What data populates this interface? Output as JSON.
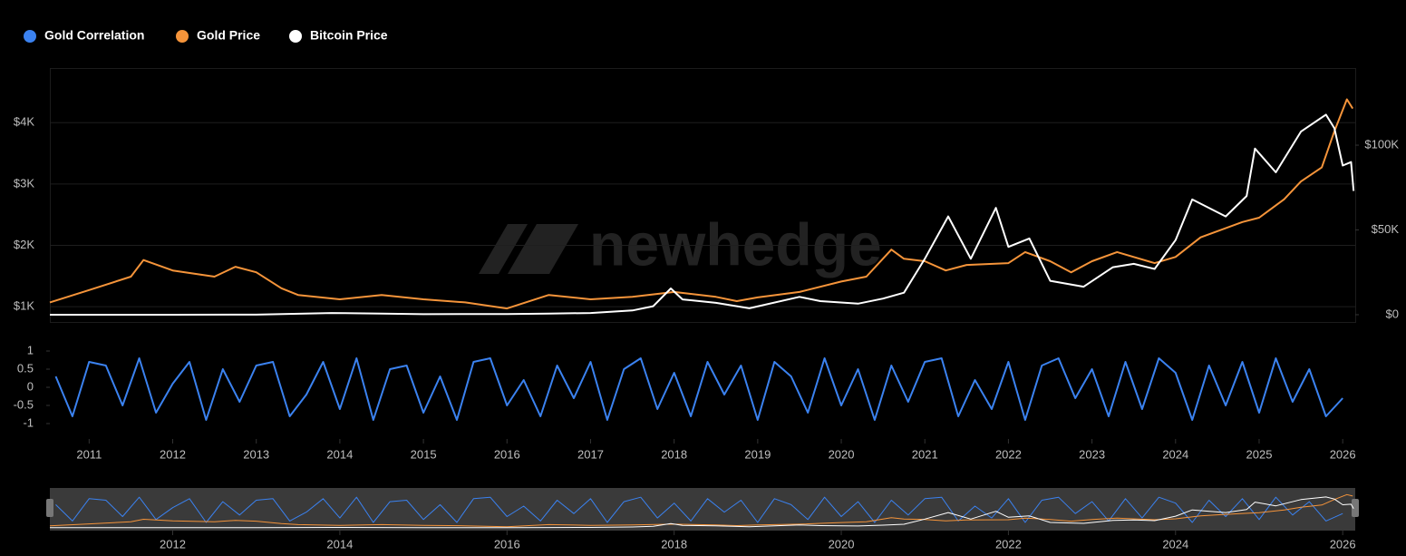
{
  "chart_data": {
    "type": "line",
    "watermark": "newhedge",
    "xlim": [
      2010.53,
      2026.15
    ],
    "xticks": [
      2011,
      2012,
      2013,
      2014,
      2015,
      2016,
      2017,
      2018,
      2019,
      2020,
      2021,
      2022,
      2023,
      2024,
      2025,
      2026
    ],
    "navigator_xticks": [
      2012,
      2014,
      2016,
      2018,
      2020,
      2022,
      2024,
      2026
    ],
    "ylim": [
      750,
      4890
    ],
    "yticks": [
      {
        "value": 1000,
        "label": "$1K"
      },
      {
        "value": 2000,
        "label": "$2K"
      },
      {
        "value": 3000,
        "label": "$3K"
      },
      {
        "value": 4000,
        "label": "$4K"
      }
    ],
    "y2lim": [
      -4300,
      145500
    ],
    "y2ticks": [
      {
        "value": 0,
        "label": "$0"
      },
      {
        "value": 50000,
        "label": "$50K"
      },
      {
        "value": 100000,
        "label": "$100K"
      }
    ],
    "y3lim": [
      -1.325,
      1.3
    ],
    "y3ticks": [
      1,
      0.5,
      0,
      -0.5,
      -1
    ],
    "grid": true,
    "legend": "top-left",
    "series": [
      {
        "name": "Gold Correlation",
        "color": "#3b82f0",
        "axis": "y3",
        "x": [
          2010.6,
          2010.8,
          2011,
          2011.2,
          2011.4,
          2011.6,
          2011.8,
          2012,
          2012.2,
          2012.4,
          2012.6,
          2012.8,
          2013,
          2013.2,
          2013.4,
          2013.6,
          2013.8,
          2014,
          2014.2,
          2014.4,
          2014.6,
          2014.8,
          2015,
          2015.2,
          2015.4,
          2015.6,
          2015.8,
          2016,
          2016.2,
          2016.4,
          2016.6,
          2016.8,
          2017,
          2017.2,
          2017.4,
          2017.6,
          2017.8,
          2018,
          2018.2,
          2018.4,
          2018.6,
          2018.8,
          2019,
          2019.2,
          2019.4,
          2019.6,
          2019.8,
          2020,
          2020.2,
          2020.4,
          2020.6,
          2020.8,
          2021,
          2021.2,
          2021.4,
          2021.6,
          2021.8,
          2022,
          2022.2,
          2022.4,
          2022.6,
          2022.8,
          2023,
          2023.2,
          2023.4,
          2023.6,
          2023.8,
          2024,
          2024.2,
          2024.4,
          2024.6,
          2024.8,
          2025,
          2025.2,
          2025.4,
          2025.6,
          2025.8,
          2026
        ],
        "values": [
          0.3,
          -0.8,
          0.7,
          0.6,
          -0.5,
          0.8,
          -0.7,
          0.1,
          0.7,
          -0.9,
          0.5,
          -0.4,
          0.6,
          0.7,
          -0.8,
          -0.2,
          0.7,
          -0.6,
          0.8,
          -0.9,
          0.5,
          0.6,
          -0.7,
          0.3,
          -0.9,
          0.7,
          0.8,
          -0.5,
          0.2,
          -0.8,
          0.6,
          -0.3,
          0.7,
          -0.9,
          0.5,
          0.8,
          -0.6,
          0.4,
          -0.8,
          0.7,
          -0.2,
          0.6,
          -0.9,
          0.7,
          0.3,
          -0.7,
          0.8,
          -0.5,
          0.5,
          -0.9,
          0.6,
          -0.4,
          0.7,
          0.8,
          -0.8,
          0.2,
          -0.6,
          0.7,
          -0.9,
          0.6,
          0.8,
          -0.3,
          0.5,
          -0.8,
          0.7,
          -0.6,
          0.8,
          0.4,
          -0.9,
          0.6,
          -0.5,
          0.7,
          -0.7,
          0.8,
          -0.4,
          0.5,
          -0.8,
          -0.3
        ]
      },
      {
        "name": "Gold Price",
        "color": "#f5943a",
        "axis": "y",
        "x": [
          2010.53,
          2011,
          2011.5,
          2011.65,
          2012,
          2012.5,
          2012.75,
          2013,
          2013.3,
          2013.5,
          2014,
          2014.5,
          2015,
          2015.5,
          2016,
          2016.5,
          2017,
          2017.5,
          2018,
          2018.5,
          2018.75,
          2019,
          2019.5,
          2020,
          2020.3,
          2020.6,
          2020.75,
          2021,
          2021.25,
          2021.5,
          2022,
          2022.2,
          2022.5,
          2022.75,
          2023,
          2023.3,
          2023.75,
          2024,
          2024.3,
          2024.5,
          2024.8,
          2025,
          2025.3,
          2025.5,
          2025.75,
          2025.9,
          2026.05,
          2026.12
        ],
        "values": [
          1070,
          1270,
          1490,
          1760,
          1590,
          1490,
          1650,
          1560,
          1300,
          1190,
          1120,
          1190,
          1120,
          1070,
          970,
          1190,
          1120,
          1160,
          1240,
          1160,
          1090,
          1150,
          1240,
          1410,
          1490,
          1930,
          1780,
          1740,
          1590,
          1680,
          1710,
          1890,
          1740,
          1560,
          1740,
          1890,
          1710,
          1810,
          2130,
          2230,
          2380,
          2450,
          2750,
          3040,
          3270,
          3860,
          4380,
          4230
        ]
      },
      {
        "name": "Bitcoin Price",
        "color": "#ffffff",
        "axis": "y2",
        "x": [
          2010.53,
          2012,
          2013,
          2013.9,
          2014.5,
          2015,
          2016,
          2016.5,
          2017,
          2017.5,
          2017.75,
          2017.96,
          2018.1,
          2018.5,
          2018.9,
          2019.5,
          2019.75,
          2020.2,
          2020.5,
          2020.75,
          2021,
          2021.28,
          2021.55,
          2021.85,
          2022,
          2022.25,
          2022.5,
          2022.9,
          2023.25,
          2023.5,
          2023.75,
          2024,
          2024.2,
          2024.6,
          2024.85,
          2024.95,
          2025.2,
          2025.5,
          2025.8,
          2025.9,
          2026,
          2026.1,
          2026.13
        ],
        "values": [
          0,
          5,
          13,
          1000,
          600,
          300,
          400,
          650,
          1000,
          2500,
          5000,
          15500,
          9000,
          7000,
          3800,
          10500,
          8000,
          6500,
          9500,
          13000,
          33000,
          58000,
          33000,
          63000,
          40000,
          45000,
          20000,
          16500,
          28000,
          30000,
          27000,
          44000,
          68000,
          58000,
          70000,
          98000,
          84000,
          108000,
          118000,
          110000,
          88000,
          90000,
          73000
        ]
      }
    ]
  }
}
